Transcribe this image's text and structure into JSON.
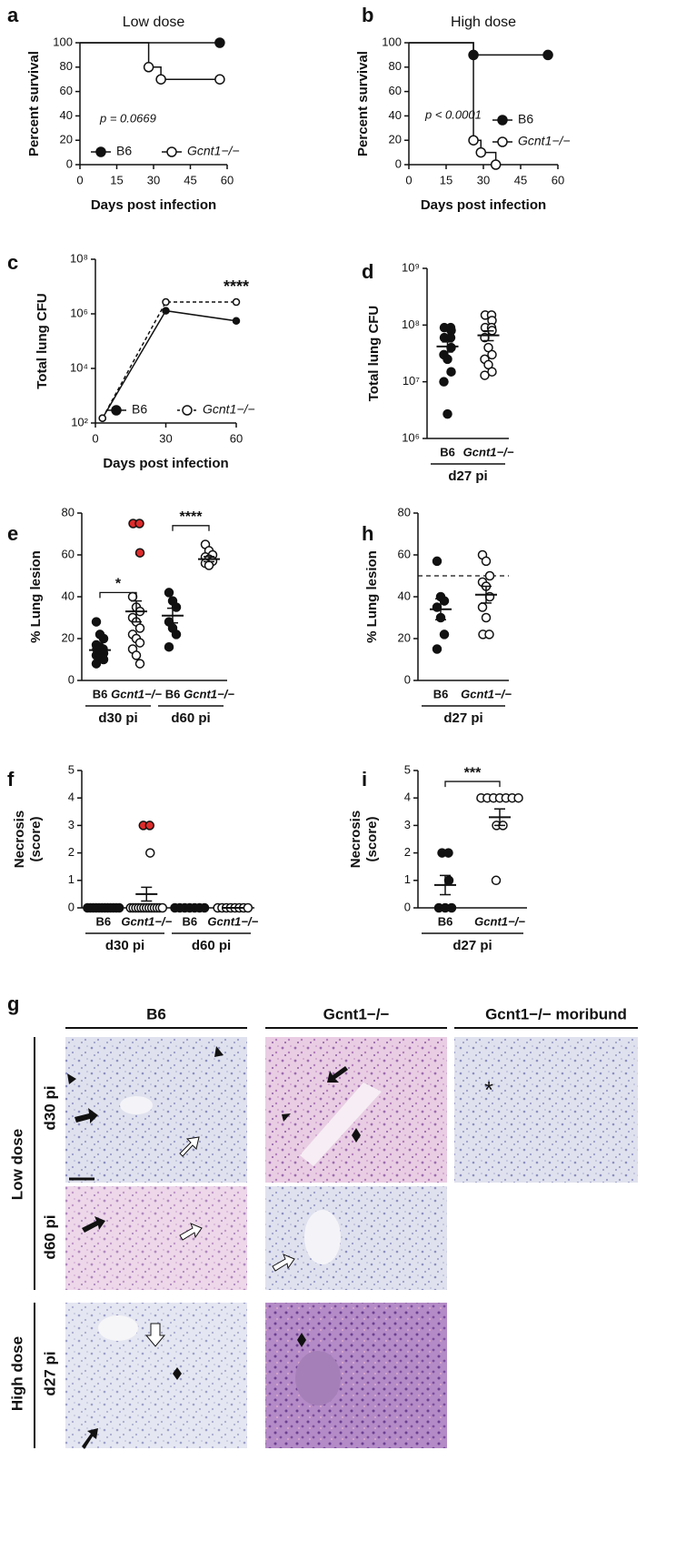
{
  "chart_data": [
    {
      "panel": "a",
      "type": "survival",
      "title": "Low dose",
      "xlabel": "Days post infection",
      "ylabel": "Percent survival",
      "xlim": [
        0,
        60
      ],
      "xticks": [
        0,
        15,
        30,
        45,
        60
      ],
      "ylim": [
        0,
        100
      ],
      "yticks": [
        0,
        20,
        40,
        60,
        80,
        100
      ],
      "annotation": "p = 0.0669",
      "legend": "bottom",
      "series": [
        {
          "name": "B6",
          "marker": "filled",
          "x": [
            0,
            57
          ],
          "values": [
            100,
            100
          ]
        },
        {
          "name": "Gcnt1−/−",
          "marker": "open",
          "x": [
            0,
            28,
            33,
            57
          ],
          "values": [
            100,
            80,
            70,
            70
          ]
        }
      ]
    },
    {
      "panel": "b",
      "type": "survival",
      "title": "High dose",
      "xlabel": "Days post infection",
      "ylabel": "Percent survival",
      "xlim": [
        0,
        60
      ],
      "xticks": [
        0,
        15,
        30,
        45,
        60
      ],
      "ylim": [
        0,
        100
      ],
      "yticks": [
        0,
        20,
        40,
        60,
        80,
        100
      ],
      "annotation": "p < 0.0001",
      "legend": "right",
      "series": [
        {
          "name": "B6",
          "marker": "filled",
          "x": [
            0,
            26,
            56
          ],
          "values": [
            100,
            90,
            90
          ]
        },
        {
          "name": "Gcnt1−/−",
          "marker": "open",
          "x": [
            0,
            26,
            29,
            35
          ],
          "values": [
            100,
            20,
            10,
            0
          ]
        }
      ]
    },
    {
      "panel": "c",
      "type": "line",
      "xlabel": "Days post infection",
      "ylabel": "Total lung CFU",
      "ylog": true,
      "xlim": [
        0,
        60
      ],
      "xticks": [
        0,
        30,
        60
      ],
      "ylim": [
        100,
        100000000
      ],
      "yticks": [
        {
          "value": 100,
          "label": "10²"
        },
        {
          "value": 10000,
          "label": "10⁴"
        },
        {
          "value": 1000000,
          "label": "10⁶"
        },
        {
          "value": 100000000,
          "label": "10⁸"
        }
      ],
      "annotation": "****",
      "legend": "bottom",
      "series": [
        {
          "name": "B6",
          "marker": "filled",
          "dashed": false,
          "x": [
            3,
            30,
            60
          ],
          "values": [
            150,
            1300000,
            550000
          ]
        },
        {
          "name": "Gcnt1−/−",
          "marker": "open",
          "dashed": true,
          "x": [
            3,
            30,
            60
          ],
          "values": [
            150,
            2700000,
            2700000
          ]
        }
      ]
    },
    {
      "panel": "d",
      "type": "dot",
      "ylabel": "Total lung CFU",
      "ylog": true,
      "ylim": [
        1000000,
        1000000000
      ],
      "yticks": [
        {
          "value": 1000000,
          "label": "10⁶"
        },
        {
          "value": 10000000,
          "label": "10⁷"
        },
        {
          "value": 100000000,
          "label": "10⁸"
        },
        {
          "value": 1000000000,
          "label": "10⁹"
        }
      ],
      "groups": [
        {
          "label": "d27 pi",
          "series": [
            {
              "name": "B6",
              "fill": "#111111",
              "values": [
                90000000,
                90000000,
                80000000,
                60000000,
                60000000,
                40000000,
                30000000,
                25000000,
                15000000,
                10000000,
                2700000
              ],
              "mean": 42000000,
              "sem": 8500000
            },
            {
              "name": "Gcnt1−/−",
              "fill": "#ffffff",
              "values": [
                150000000,
                150000000,
                120000000,
                90000000,
                90000000,
                80000000,
                60000000,
                40000000,
                30000000,
                25000000,
                20000000,
                15000000,
                13000000
              ],
              "mean": 66000000,
              "sem": 13000000
            }
          ]
        }
      ]
    },
    {
      "panel": "e",
      "type": "dot",
      "ylabel": "% Lung lesion",
      "ylim": [
        0,
        80
      ],
      "yticks": [
        0,
        20,
        40,
        60,
        80
      ],
      "groups": [
        {
          "label": "d30 pi",
          "annotation": {
            "text": "*",
            "y": 42
          },
          "series": [
            {
              "name": "B6",
              "fill": "#111111",
              "values": [
                28,
                22,
                20,
                17,
                16,
                15,
                15,
                14,
                13,
                12,
                11,
                10,
                8
              ],
              "mean": 14.5,
              "sem": 1.5
            },
            {
              "name": "Gcnt1−/−",
              "fill": "#ffffff",
              "values": [
                75,
                75,
                61,
                40,
                35,
                33,
                30,
                28,
                25,
                22,
                20,
                18,
                15,
                12,
                8
              ],
              "mean": 33,
              "sem": 5,
              "point_colors": [
                "#e02b2b",
                "#e02b2b",
                "#e02b2b",
                "#ffffff",
                "#ffffff",
                "#ffffff",
                "#ffffff",
                "#ffffff",
                "#ffffff",
                "#ffffff",
                "#ffffff",
                "#ffffff",
                "#ffffff",
                "#ffffff",
                "#ffffff"
              ]
            }
          ]
        },
        {
          "label": "d60 pi",
          "annotation": {
            "text": "****",
            "y": 74
          },
          "series": [
            {
              "name": "B6",
              "fill": "#111111",
              "values": [
                42,
                38,
                35,
                28,
                25,
                22,
                16
              ],
              "mean": 31,
              "sem": 3.5
            },
            {
              "name": "Gcnt1−/−",
              "fill": "#ffffff",
              "values": [
                65,
                62,
                60,
                59,
                58,
                57,
                56,
                55
              ],
              "mean": 58,
              "sem": 1.2
            }
          ]
        }
      ]
    },
    {
      "panel": "h",
      "type": "dot",
      "ylabel": "% Lung lesion",
      "ylim": [
        0,
        80
      ],
      "yticks": [
        0,
        20,
        40,
        60,
        80
      ],
      "reference_line": 50,
      "groups": [
        {
          "label": "d27 pi",
          "series": [
            {
              "name": "B6",
              "fill": "#111111",
              "values": [
                57,
                40,
                38,
                35,
                30,
                22,
                15
              ],
              "mean": 34,
              "sem": 5
            },
            {
              "name": "Gcnt1−/−",
              "fill": "#ffffff",
              "values": [
                60,
                57,
                50,
                47,
                45,
                40,
                35,
                30,
                22,
                22
              ],
              "mean": 41,
              "sem": 4
            }
          ]
        }
      ]
    },
    {
      "panel": "f",
      "type": "dot",
      "ylabel": [
        "Necrosis",
        "(score)"
      ],
      "ylim": [
        0,
        5
      ],
      "yticks": [
        0,
        1,
        2,
        3,
        4,
        5
      ],
      "groups": [
        {
          "label": "d30 pi",
          "series": [
            {
              "name": "B6",
              "fill": "#111111",
              "values": [
                0,
                0,
                0,
                0,
                0,
                0,
                0,
                0,
                0,
                0,
                0,
                0
              ],
              "mean": 0,
              "sem": 0
            },
            {
              "name": "Gcnt1−/−",
              "fill": "#ffffff",
              "values": [
                3,
                3,
                2,
                0,
                0,
                0,
                0,
                0,
                0,
                0,
                0,
                0,
                0,
                0,
                0,
                0
              ],
              "mean": 0.5,
              "sem": 0.25,
              "point_colors": [
                "#e02b2b",
                "#e02b2b",
                "#ffffff",
                "#ffffff",
                "#ffffff",
                "#ffffff",
                "#ffffff",
                "#ffffff",
                "#ffffff",
                "#ffffff",
                "#ffffff",
                "#ffffff",
                "#ffffff",
                "#ffffff",
                "#ffffff",
                "#ffffff"
              ]
            }
          ]
        },
        {
          "label": "d60 pi",
          "series": [
            {
              "name": "B6",
              "fill": "#111111",
              "values": [
                0,
                0,
                0,
                0,
                0,
                0,
                0
              ],
              "mean": 0,
              "sem": 0
            },
            {
              "name": "Gcnt1−/−",
              "fill": "#ffffff",
              "values": [
                0,
                0,
                0,
                0,
                0,
                0,
                0,
                0
              ],
              "mean": 0,
              "sem": 0
            }
          ]
        }
      ]
    },
    {
      "panel": "i",
      "type": "dot",
      "ylabel": [
        "Necrosis",
        "(score)"
      ],
      "ylim": [
        0,
        5
      ],
      "yticks": [
        0,
        1,
        2,
        3,
        4,
        5
      ],
      "groups": [
        {
          "label": "d27 pi",
          "annotation": {
            "text": "***",
            "y": 4.6
          },
          "series": [
            {
              "name": "B6",
              "fill": "#111111",
              "values": [
                2,
                2,
                1,
                0,
                0,
                0
              ],
              "mean": 0.83,
              "sem": 0.35
            },
            {
              "name": "Gcnt1−/−",
              "fill": "#ffffff",
              "values": [
                4,
                4,
                4,
                4,
                4,
                4,
                4,
                3,
                3,
                1
              ],
              "mean": 3.3,
              "sem": 0.3
            }
          ]
        }
      ]
    }
  ],
  "histology": {
    "panel": "g",
    "columns": [
      "B6",
      "Gcnt1−/−",
      "Gcnt1−/− moribund"
    ],
    "rows": [
      "d30 pi",
      "d60 pi",
      "d27 pi"
    ],
    "row_groups": [
      "Low dose",
      "High dose"
    ],
    "annotation": "*"
  }
}
